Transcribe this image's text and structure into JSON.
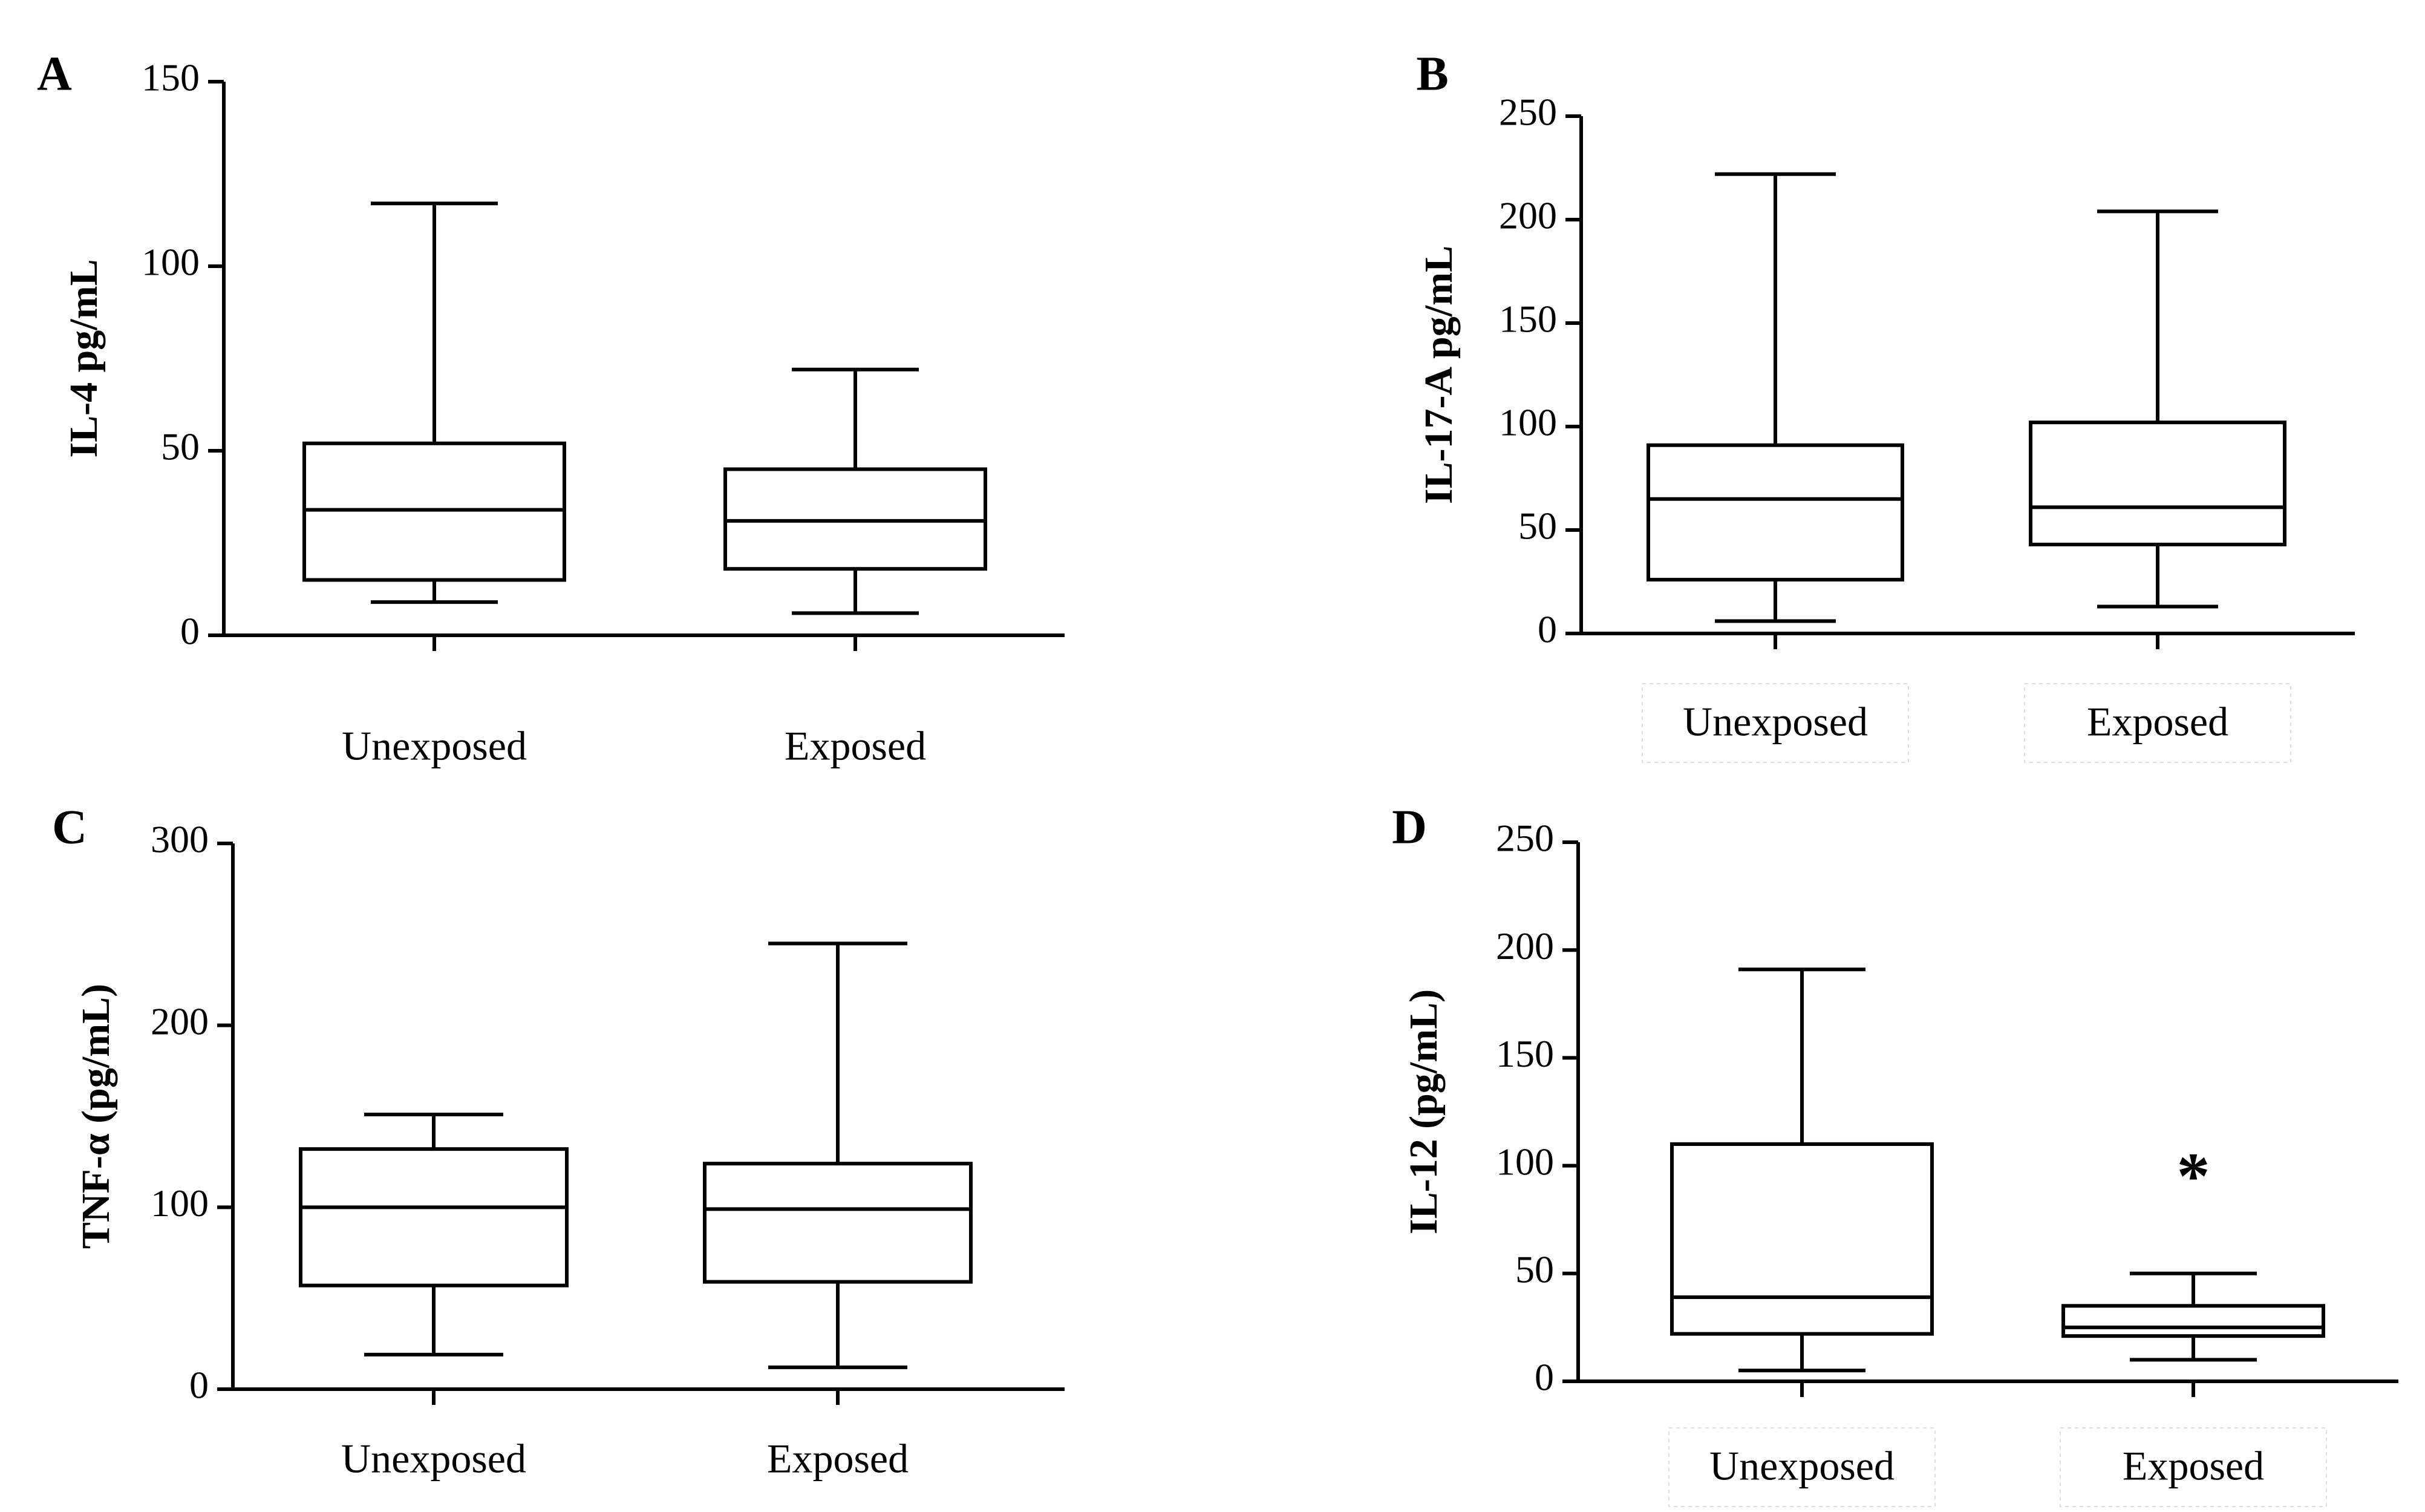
{
  "chart_data": [
    {
      "type": "boxplot",
      "panel_label": "A",
      "title": "",
      "xlabel": "",
      "ylabel": "IL-4 pg/mL",
      "ylim": [
        0,
        150
      ],
      "y_ticks": [
        "0",
        "50",
        "100",
        "150"
      ],
      "categories": [
        "Unexposed",
        "Exposed"
      ],
      "series": [
        {
          "name": "Unexposed",
          "min": 9,
          "q1": 15,
          "median": 34,
          "q3": 52,
          "max": 117
        },
        {
          "name": "Exposed",
          "min": 6,
          "q1": 18,
          "median": 31,
          "q3": 45,
          "max": 72
        }
      ],
      "annotations": []
    },
    {
      "type": "boxplot",
      "panel_label": "B",
      "title": "",
      "xlabel": "",
      "ylabel": "IL-17-A pg/mL",
      "ylim": [
        0,
        250
      ],
      "y_ticks": [
        "0",
        "50",
        "100",
        "150",
        "200",
        "250"
      ],
      "categories": [
        "Unexposed",
        "Exposed"
      ],
      "series": [
        {
          "name": "Unexposed",
          "min": 6,
          "q1": 26,
          "median": 65,
          "q3": 91,
          "max": 222
        },
        {
          "name": "Exposed",
          "min": 13,
          "q1": 43,
          "median": 61,
          "q3": 102,
          "max": 204
        }
      ],
      "annotations": []
    },
    {
      "type": "boxplot",
      "panel_label": "C",
      "title": "",
      "xlabel": "",
      "ylabel": "TNF-α (pg/mL)",
      "ylim": [
        0,
        300
      ],
      "y_ticks": [
        "0",
        "100",
        "200",
        "300"
      ],
      "categories": [
        "Unexposed",
        "Exposed"
      ],
      "series": [
        {
          "name": "Unexposed",
          "min": 19,
          "q1": 57,
          "median": 100,
          "q3": 132,
          "max": 151
        },
        {
          "name": "Exposed",
          "min": 12,
          "q1": 59,
          "median": 99,
          "q3": 124,
          "max": 245
        }
      ],
      "annotations": []
    },
    {
      "type": "boxplot",
      "panel_label": "D",
      "title": "",
      "xlabel": "",
      "ylabel": "IL-12 (pg/mL)",
      "ylim": [
        0,
        250
      ],
      "y_ticks": [
        "0",
        "50",
        "100",
        "150",
        "200",
        "250"
      ],
      "categories": [
        "Unexposed",
        "Exposed"
      ],
      "series": [
        {
          "name": "Unexposed",
          "min": 5,
          "q1": 22,
          "median": 39,
          "q3": 110,
          "max": 191
        },
        {
          "name": "Exposed",
          "min": 10,
          "q1": 21,
          "median": 25,
          "q3": 35,
          "max": 50
        }
      ],
      "annotations": [
        {
          "category_index": 1,
          "value": 92,
          "text": "*"
        }
      ]
    }
  ]
}
